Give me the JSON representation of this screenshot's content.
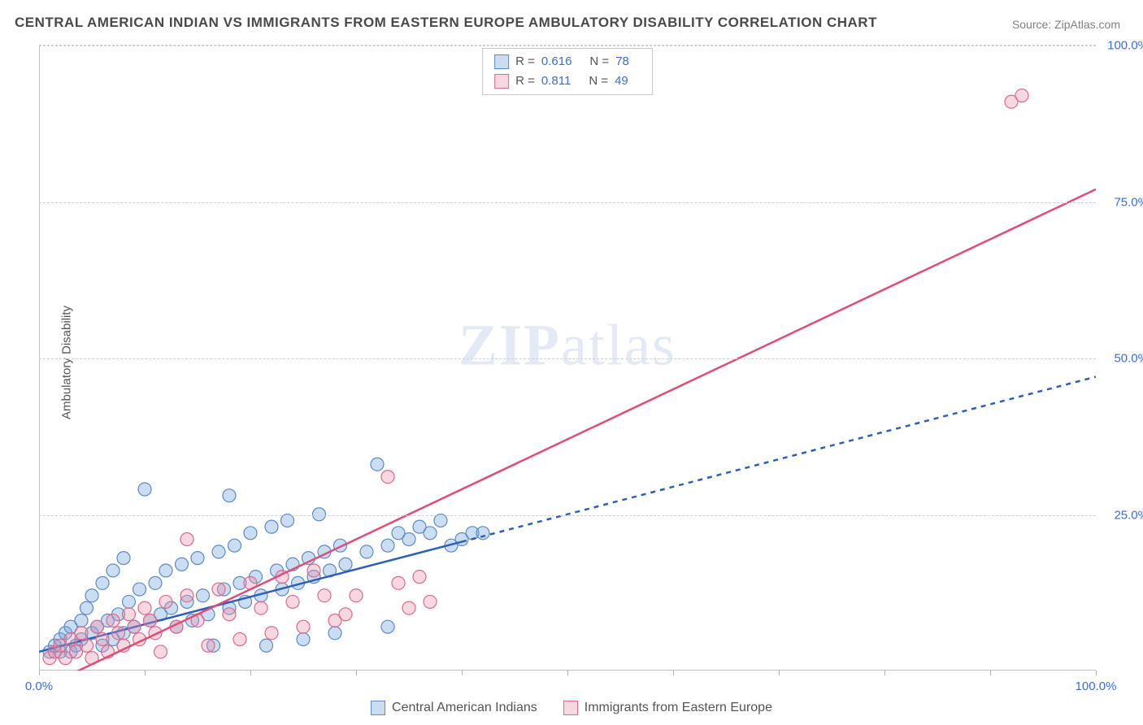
{
  "title": "CENTRAL AMERICAN INDIAN VS IMMIGRANTS FROM EASTERN EUROPE AMBULATORY DISABILITY CORRELATION CHART",
  "source_label": "Source: ZipAtlas.com",
  "y_axis_label": "Ambulatory Disability",
  "watermark": {
    "bold": "ZIP",
    "rest": "atlas"
  },
  "chart": {
    "type": "scatter",
    "xlim": [
      0,
      100
    ],
    "ylim": [
      0,
      100
    ],
    "x_ticks": [
      0,
      10,
      20,
      30,
      40,
      50,
      60,
      70,
      80,
      90,
      100
    ],
    "x_tick_labels": {
      "0": "0.0%",
      "100": "100.0%"
    },
    "y_gridlines": [
      25,
      50,
      75,
      100
    ],
    "y_tick_labels": {
      "25": "25.0%",
      "50": "50.0%",
      "75": "75.0%",
      "100": "100.0%"
    },
    "grid_color": "#d0d0d0",
    "background_color": "#ffffff",
    "marker_radius": 8,
    "marker_opacity": 0.55,
    "series": [
      {
        "name": "Central American Indians",
        "color": "#6a9ed8",
        "fill": "rgba(106,158,216,0.35)",
        "stroke": "#5b8bc9",
        "R": "0.616",
        "N": "78",
        "trend": {
          "color": "#2d5fb8",
          "width": 2.5,
          "solid_range": [
            0,
            40
          ],
          "dash_range": [
            40,
            100
          ],
          "y_at_0": 3,
          "y_at_100": 47
        },
        "points": [
          [
            1,
            3
          ],
          [
            1.5,
            4
          ],
          [
            2,
            5
          ],
          [
            2,
            3
          ],
          [
            2.5,
            6
          ],
          [
            3,
            3
          ],
          [
            3,
            7
          ],
          [
            3.5,
            4
          ],
          [
            4,
            8
          ],
          [
            4,
            5
          ],
          [
            4.5,
            10
          ],
          [
            5,
            6
          ],
          [
            5,
            12
          ],
          [
            5.5,
            7
          ],
          [
            6,
            4
          ],
          [
            6,
            14
          ],
          [
            6.5,
            8
          ],
          [
            7,
            5
          ],
          [
            7,
            16
          ],
          [
            7.5,
            9
          ],
          [
            8,
            6
          ],
          [
            8,
            18
          ],
          [
            8.5,
            11
          ],
          [
            9,
            7
          ],
          [
            9.5,
            13
          ],
          [
            10,
            29
          ],
          [
            10.5,
            8
          ],
          [
            11,
            14
          ],
          [
            11.5,
            9
          ],
          [
            12,
            16
          ],
          [
            12.5,
            10
          ],
          [
            13,
            7
          ],
          [
            13.5,
            17
          ],
          [
            14,
            11
          ],
          [
            14.5,
            8
          ],
          [
            15,
            18
          ],
          [
            15.5,
            12
          ],
          [
            16,
            9
          ],
          [
            16.5,
            4
          ],
          [
            17,
            19
          ],
          [
            17.5,
            13
          ],
          [
            18,
            10
          ],
          [
            18,
            28
          ],
          [
            18.5,
            20
          ],
          [
            19,
            14
          ],
          [
            19.5,
            11
          ],
          [
            20,
            22
          ],
          [
            20.5,
            15
          ],
          [
            21,
            12
          ],
          [
            21.5,
            4
          ],
          [
            22,
            23
          ],
          [
            22.5,
            16
          ],
          [
            23,
            13
          ],
          [
            23.5,
            24
          ],
          [
            24,
            17
          ],
          [
            24.5,
            14
          ],
          [
            25,
            5
          ],
          [
            25.5,
            18
          ],
          [
            26,
            15
          ],
          [
            26.5,
            25
          ],
          [
            27,
            19
          ],
          [
            27.5,
            16
          ],
          [
            28,
            6
          ],
          [
            28.5,
            20
          ],
          [
            29,
            17
          ],
          [
            31,
            19
          ],
          [
            32,
            33
          ],
          [
            33,
            20
          ],
          [
            33,
            7
          ],
          [
            34,
            22
          ],
          [
            35,
            21
          ],
          [
            36,
            23
          ],
          [
            37,
            22
          ],
          [
            38,
            24
          ],
          [
            39,
            20
          ],
          [
            40,
            21
          ],
          [
            41,
            22
          ],
          [
            42,
            22
          ]
        ]
      },
      {
        "name": "Immigrants from Eastern Europe",
        "color": "#e88fa8",
        "fill": "rgba(232,143,168,0.35)",
        "stroke": "#dd6a8c",
        "R": "0.811",
        "N": "49",
        "trend": {
          "color": "#e14d77",
          "width": 2.5,
          "solid_range": [
            0,
            100
          ],
          "dash_range": null,
          "y_at_0": -3,
          "y_at_100": 77
        },
        "points": [
          [
            1,
            2
          ],
          [
            1.5,
            3
          ],
          [
            2,
            4
          ],
          [
            2.5,
            2
          ],
          [
            3,
            5
          ],
          [
            3.5,
            3
          ],
          [
            4,
            6
          ],
          [
            4.5,
            4
          ],
          [
            5,
            2
          ],
          [
            5.5,
            7
          ],
          [
            6,
            5
          ],
          [
            6.5,
            3
          ],
          [
            7,
            8
          ],
          [
            7.5,
            6
          ],
          [
            8,
            4
          ],
          [
            8.5,
            9
          ],
          [
            9,
            7
          ],
          [
            9.5,
            5
          ],
          [
            10,
            10
          ],
          [
            10.5,
            8
          ],
          [
            11,
            6
          ],
          [
            11.5,
            3
          ],
          [
            12,
            11
          ],
          [
            13,
            7
          ],
          [
            14,
            12
          ],
          [
            14,
            21
          ],
          [
            15,
            8
          ],
          [
            16,
            4
          ],
          [
            17,
            13
          ],
          [
            18,
            9
          ],
          [
            19,
            5
          ],
          [
            20,
            14
          ],
          [
            21,
            10
          ],
          [
            22,
            6
          ],
          [
            23,
            15
          ],
          [
            24,
            11
          ],
          [
            25,
            7
          ],
          [
            26,
            16
          ],
          [
            27,
            12
          ],
          [
            28,
            8
          ],
          [
            29,
            9
          ],
          [
            30,
            12
          ],
          [
            33,
            31
          ],
          [
            34,
            14
          ],
          [
            35,
            10
          ],
          [
            36,
            15
          ],
          [
            37,
            11
          ],
          [
            92,
            91
          ],
          [
            93,
            92
          ]
        ]
      }
    ]
  },
  "legend_bottom": [
    {
      "label": "Central American Indians",
      "series_index": 0
    },
    {
      "label": "Immigrants from Eastern Europe",
      "series_index": 1
    }
  ]
}
